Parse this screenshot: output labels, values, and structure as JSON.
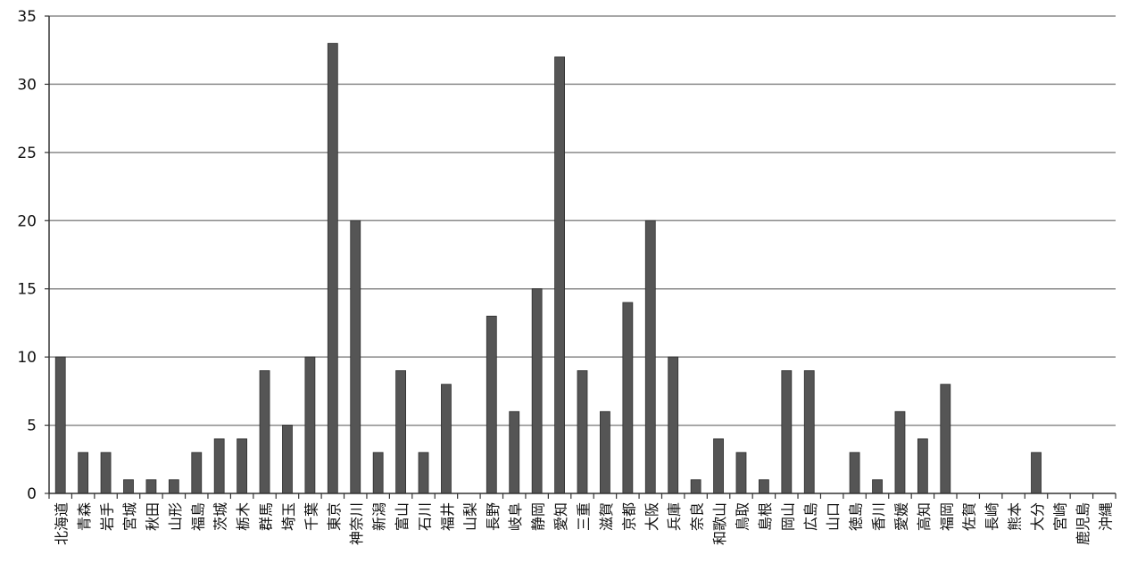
{
  "chart_data": {
    "type": "bar",
    "title": "",
    "xlabel": "",
    "ylabel": "",
    "ylim": [
      0,
      35
    ],
    "yticks": [
      0,
      5,
      10,
      15,
      20,
      25,
      30,
      35
    ],
    "grid": "horizontal",
    "legend": "none",
    "bar_color": "#555555",
    "categories": [
      "北海道",
      "青森",
      "岩手",
      "宮城",
      "秋田",
      "山形",
      "福島",
      "茨城",
      "栃木",
      "群馬",
      "埼玉",
      "千葉",
      "東京",
      "神奈川",
      "新潟",
      "富山",
      "石川",
      "福井",
      "山梨",
      "長野",
      "岐阜",
      "静岡",
      "愛知",
      "三重",
      "滋賀",
      "京都",
      "大阪",
      "兵庫",
      "奈良",
      "和歌山",
      "鳥取",
      "島根",
      "岡山",
      "広島",
      "山口",
      "徳島",
      "香川",
      "愛媛",
      "高知",
      "福岡",
      "佐賀",
      "長崎",
      "熊本",
      "大分",
      "宮崎",
      "鹿児島",
      "沖縄"
    ],
    "values": [
      10,
      3,
      3,
      1,
      1,
      1,
      3,
      4,
      4,
      9,
      5,
      10,
      33,
      20,
      3,
      9,
      3,
      8,
      0,
      13,
      6,
      15,
      32,
      9,
      6,
      14,
      20,
      10,
      1,
      4,
      3,
      1,
      9,
      9,
      0,
      3,
      1,
      6,
      4,
      8,
      0,
      0,
      0,
      3,
      0,
      0,
      0
    ]
  }
}
